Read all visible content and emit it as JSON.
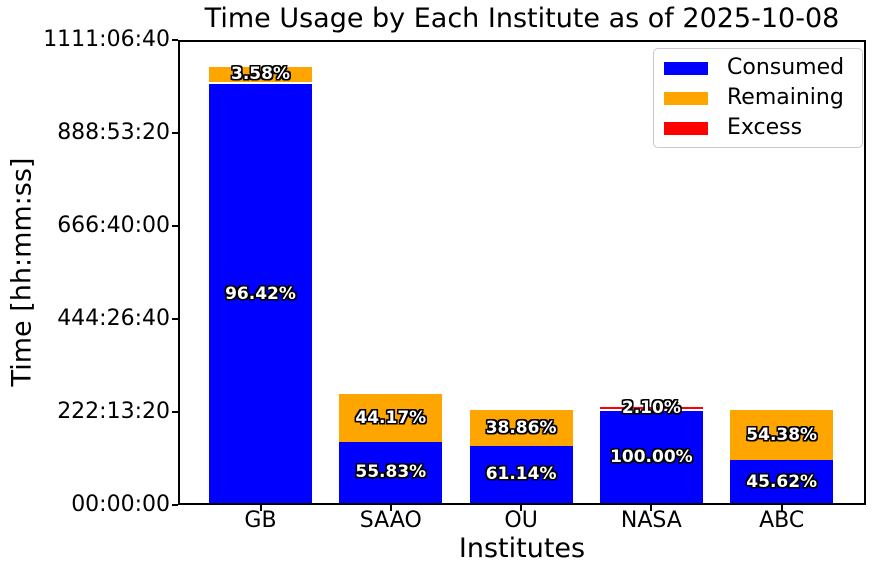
{
  "chart_data": {
    "type": "bar",
    "stacked": true,
    "title": "Time Usage by Each Institute as of 2025-10-08",
    "xlabel": "Institutes",
    "ylabel": "Time [hh:mm:ss]",
    "categories": [
      "GB",
      "SAAO",
      "OU",
      "NASA",
      "ABC"
    ],
    "ytick_labels": [
      "00:00:00",
      "222:13:20",
      "444:26:40",
      "666:40:00",
      "888:53:20",
      "1111:06:40"
    ],
    "ylim_seconds": [
      0,
      4000000
    ],
    "grid": false,
    "legend_position": "upper right",
    "legend": [
      {
        "key": "consumed",
        "label": "Consumed",
        "color": "#0000ff"
      },
      {
        "key": "remaining",
        "label": "Remaining",
        "color": "#ffa500"
      },
      {
        "key": "excess",
        "label": "Excess",
        "color": "#ff0000"
      }
    ],
    "colors": {
      "consumed": "#0000ff",
      "remaining": "#ffa500",
      "excess": "#ff0000"
    },
    "bars": [
      {
        "institute": "GB",
        "allocated_seconds_est": 3770000,
        "segments": [
          {
            "kind": "consumed",
            "pct": 96.42,
            "label": "96.42%",
            "separated": false
          },
          {
            "kind": "remaining",
            "pct": 3.58,
            "label": "3.58%",
            "separated": true
          }
        ]
      },
      {
        "institute": "SAAO",
        "allocated_seconds_est": 949000,
        "segments": [
          {
            "kind": "consumed",
            "pct": 55.83,
            "label": "55.83%",
            "separated": false
          },
          {
            "kind": "remaining",
            "pct": 44.17,
            "label": "44.17%",
            "separated": false
          }
        ]
      },
      {
        "institute": "OU",
        "allocated_seconds_est": 810000,
        "segments": [
          {
            "kind": "consumed",
            "pct": 61.14,
            "label": "61.14%",
            "separated": false
          },
          {
            "kind": "remaining",
            "pct": 38.86,
            "label": "38.86%",
            "separated": false
          }
        ]
      },
      {
        "institute": "NASA",
        "allocated_seconds_est": 800000,
        "segments": [
          {
            "kind": "consumed",
            "pct": 100.0,
            "label": "100.00%",
            "separated": false
          },
          {
            "kind": "excess",
            "pct": 2.1,
            "label": "2.10%",
            "separated": true
          }
        ]
      },
      {
        "institute": "ABC",
        "allocated_seconds_est": 810000,
        "segments": [
          {
            "kind": "consumed",
            "pct": 45.62,
            "label": "45.62%",
            "separated": false
          },
          {
            "kind": "remaining",
            "pct": 54.38,
            "label": "54.38%",
            "separated": false
          }
        ]
      }
    ]
  }
}
